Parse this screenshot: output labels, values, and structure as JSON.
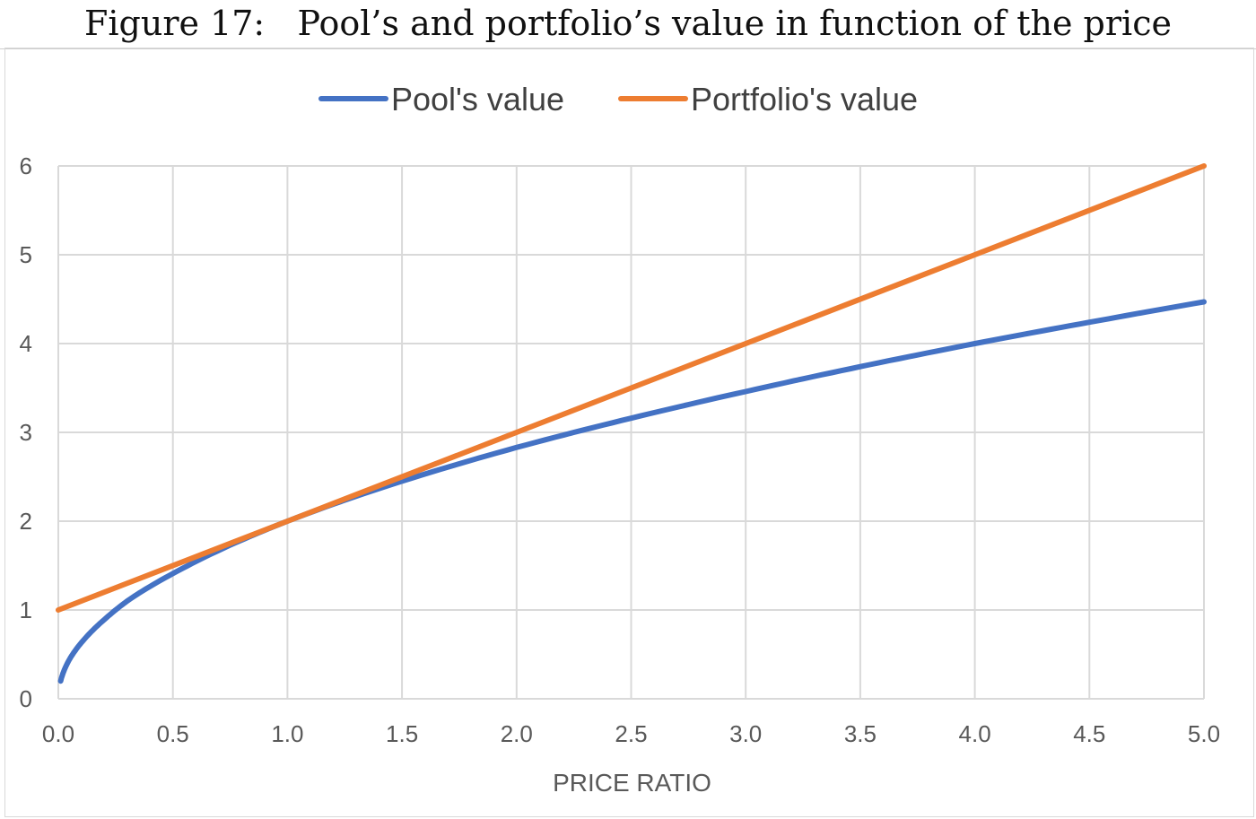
{
  "caption": {
    "label": "Figure 17:",
    "text": "Pool’s and portfolio’s value in function of the price"
  },
  "chart_data": {
    "type": "line",
    "title": "",
    "xlabel": "PRICE RATIO",
    "ylabel": "",
    "xlim": [
      0,
      5
    ],
    "ylim": [
      0,
      6
    ],
    "x_ticks": [
      "0.0",
      "0.5",
      "1.0",
      "1.5",
      "2.0",
      "2.5",
      "3.0",
      "3.5",
      "4.0",
      "4.5",
      "5.0"
    ],
    "y_ticks": [
      "0",
      "1",
      "2",
      "3",
      "4",
      "5",
      "6"
    ],
    "grid": true,
    "legend_position": "top-center",
    "series": [
      {
        "name": "Pool's value",
        "color": "#4472C4",
        "x": [
          0.01,
          0.05,
          0.1,
          0.2,
          0.3,
          0.5,
          0.75,
          1.0,
          1.5,
          2.0,
          2.5,
          3.0,
          3.5,
          4.0,
          4.5,
          5.0
        ],
        "y": [
          0.2,
          0.45,
          0.63,
          0.89,
          1.1,
          1.41,
          1.73,
          2.0,
          2.45,
          2.83,
          3.16,
          3.46,
          3.74,
          4.0,
          4.24,
          4.47
        ]
      },
      {
        "name": "Portfolio's value",
        "color": "#ED7D31",
        "x": [
          0.0,
          1.0,
          2.0,
          3.0,
          4.0,
          5.0
        ],
        "y": [
          1.0,
          2.0,
          3.0,
          4.0,
          5.0,
          6.0
        ]
      }
    ]
  }
}
